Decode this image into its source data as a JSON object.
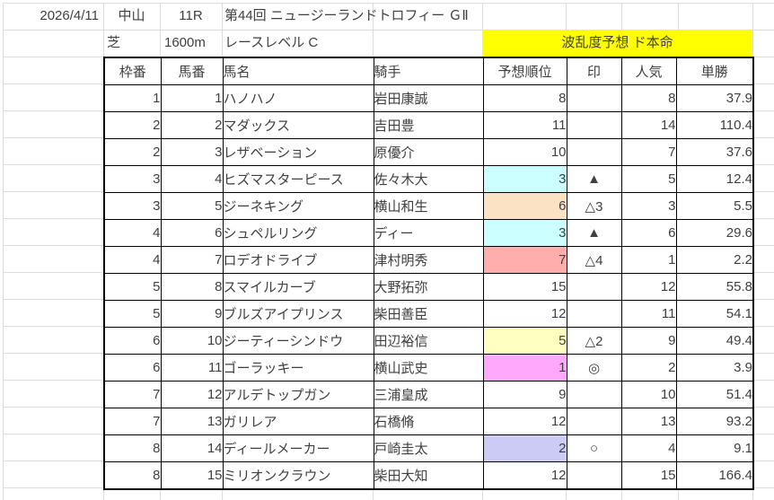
{
  "header": {
    "date": "2026/4/11",
    "track": "中山",
    "race_number": "11R",
    "race_title": "第44回 ニュージーランドトロフィー ＧⅡ",
    "surface": "芝",
    "distance": "1600m",
    "race_level": "レースレベル C",
    "banner": "波乱度予想 ド本命",
    "banner_color": "#ffff00"
  },
  "table": {
    "headers": [
      "枠番",
      "馬番",
      "馬名",
      "騎手",
      "予想順位",
      "印",
      "人気",
      "単勝"
    ],
    "rows": [
      {
        "waku": "1",
        "uma": "1",
        "name": "ハノハノ",
        "jockey": "岩田康誠",
        "rank": "8",
        "rank_bg": "",
        "mark": "",
        "ninki": "8",
        "odds": "37.9"
      },
      {
        "waku": "2",
        "uma": "2",
        "name": "マダックス",
        "jockey": "吉田豊",
        "rank": "11",
        "rank_bg": "",
        "mark": "",
        "ninki": "14",
        "odds": "110.4"
      },
      {
        "waku": "2",
        "uma": "3",
        "name": "レザベーション",
        "jockey": "原優介",
        "rank": "10",
        "rank_bg": "",
        "mark": "",
        "ninki": "7",
        "odds": "37.6"
      },
      {
        "waku": "3",
        "uma": "4",
        "name": "ヒズマスターピース",
        "jockey": "佐々木大",
        "rank": "3",
        "rank_bg": "#ccffff",
        "mark": "▲",
        "ninki": "5",
        "odds": "12.4"
      },
      {
        "waku": "3",
        "uma": "5",
        "name": "ジーネキング",
        "jockey": "横山和生",
        "rank": "6",
        "rank_bg": "#fbe2c5",
        "mark": "△3",
        "ninki": "3",
        "odds": "5.5"
      },
      {
        "waku": "4",
        "uma": "6",
        "name": "シュペルリング",
        "jockey": "ディー",
        "rank": "3",
        "rank_bg": "#ccffff",
        "mark": "▲",
        "ninki": "6",
        "odds": "29.6"
      },
      {
        "waku": "4",
        "uma": "7",
        "name": "ロデオドライブ",
        "jockey": "津村明秀",
        "rank": "7",
        "rank_bg": "#ffadad",
        "mark": "△4",
        "ninki": "1",
        "odds": "2.2"
      },
      {
        "waku": "5",
        "uma": "8",
        "name": "スマイルカーブ",
        "jockey": "大野拓弥",
        "rank": "15",
        "rank_bg": "",
        "mark": "",
        "ninki": "12",
        "odds": "55.8"
      },
      {
        "waku": "5",
        "uma": "9",
        "name": "ブルズアイプリンス",
        "jockey": "柴田善臣",
        "rank": "12",
        "rank_bg": "",
        "mark": "",
        "ninki": "11",
        "odds": "54.1"
      },
      {
        "waku": "6",
        "uma": "10",
        "name": "ジーティーシンドウ",
        "jockey": "田辺裕信",
        "rank": "5",
        "rank_bg": "#ffffc2",
        "mark": "△2",
        "ninki": "9",
        "odds": "49.4"
      },
      {
        "waku": "6",
        "uma": "11",
        "name": "ゴーラッキー",
        "jockey": "横山武史",
        "rank": "1",
        "rank_bg": "#ffa8fc",
        "mark": "◎",
        "ninki": "2",
        "odds": "3.9"
      },
      {
        "waku": "7",
        "uma": "12",
        "name": "アルデトップガン",
        "jockey": "三浦皇成",
        "rank": "9",
        "rank_bg": "",
        "mark": "",
        "ninki": "10",
        "odds": "51.4"
      },
      {
        "waku": "7",
        "uma": "13",
        "name": "ガリレア",
        "jockey": "石橋脩",
        "rank": "12",
        "rank_bg": "",
        "mark": "",
        "ninki": "13",
        "odds": "93.2"
      },
      {
        "waku": "8",
        "uma": "14",
        "name": "ディールメーカー",
        "jockey": "戸崎圭太",
        "rank": "2",
        "rank_bg": "#cbcbf5",
        "mark": "○",
        "ninki": "4",
        "odds": "9.1"
      },
      {
        "waku": "8",
        "uma": "15",
        "name": "ミリオンクラウン",
        "jockey": "柴田大知",
        "rank": "12",
        "rank_bg": "",
        "mark": "",
        "ninki": "15",
        "odds": "166.4"
      }
    ]
  }
}
